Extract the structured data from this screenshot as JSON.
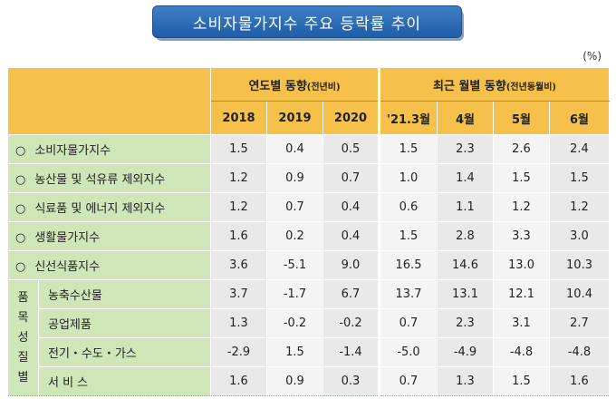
{
  "title": "소비자물가지수 주요 등락률 추이",
  "unit": "(%)",
  "header": {
    "annual_group": "연도별 동향",
    "annual_note": "(전년비)",
    "monthly_group": "최근 월별 동향",
    "monthly_note": "(전년동월비)",
    "columns": [
      "2018",
      "2019",
      "2020",
      "'21.3월",
      "4월",
      "5월",
      "6월"
    ]
  },
  "side_label": [
    "품",
    "목",
    "성",
    "질",
    "별"
  ],
  "rows": [
    {
      "bullet": "○",
      "label": "소비자물가지수",
      "values": [
        "1.5",
        "0.4",
        "0.5",
        "1.5",
        "2.3",
        "2.6",
        "2.4"
      ]
    },
    {
      "bullet": "○",
      "label": "농산물 및 석유류 제외지수",
      "values": [
        "1.2",
        "0.9",
        "0.7",
        "1.0",
        "1.4",
        "1.5",
        "1.5"
      ]
    },
    {
      "bullet": "○",
      "label": "식료품 및 에너지 제외지수",
      "values": [
        "1.2",
        "0.7",
        "0.4",
        "0.6",
        "1.1",
        "1.2",
        "1.2"
      ]
    },
    {
      "bullet": "○",
      "label": "생활물가지수",
      "values": [
        "1.6",
        "0.2",
        "0.4",
        "1.5",
        "2.8",
        "3.3",
        "3.0"
      ]
    },
    {
      "bullet": "○",
      "label": "신선식품지수",
      "values": [
        "3.6",
        "-5.1",
        "9.0",
        "16.5",
        "14.6",
        "13.0",
        "10.3"
      ]
    }
  ],
  "sub_rows": [
    {
      "label": "농축수산물",
      "values": [
        "3.7",
        "-1.7",
        "6.7",
        "13.7",
        "13.1",
        "12.1",
        "10.4"
      ]
    },
    {
      "label": "공업제품",
      "values": [
        "1.3",
        "-0.2",
        "-0.2",
        "0.7",
        "2.3",
        "3.1",
        "2.7"
      ]
    },
    {
      "label": "전기・수도・가스",
      "values": [
        "-2.9",
        "1.5",
        "-1.4",
        "-5.0",
        "-4.9",
        "-4.8",
        "-4.8"
      ]
    },
    {
      "label": "서 비 스",
      "values": [
        "1.6",
        "0.9",
        "0.3",
        "0.7",
        "1.3",
        "1.5",
        "1.6"
      ]
    }
  ]
}
